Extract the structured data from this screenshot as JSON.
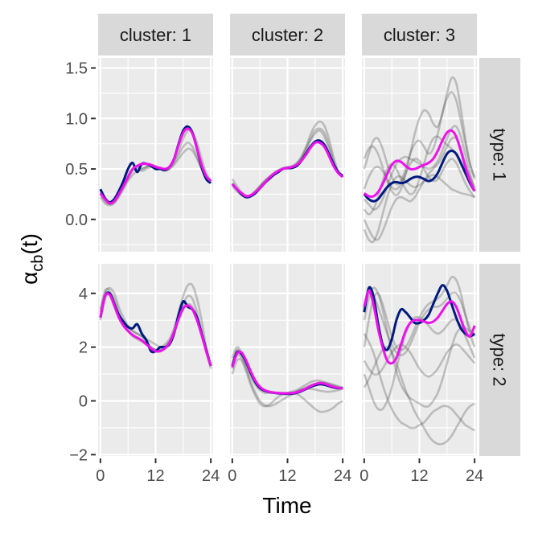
{
  "chart_data": {
    "type": "line",
    "xlabel": "Time",
    "ylabel": "α",
    "ylabel_sub": "cb",
    "ylabel_suffix": "(t)",
    "columns": [
      "cluster: 1",
      "cluster: 2",
      "cluster: 3"
    ],
    "rows": [
      "type: 1",
      "type: 2"
    ],
    "x_ticks": [
      0,
      12,
      24
    ],
    "xlim": [
      -0.5,
      24.5
    ],
    "rows_scale": [
      {
        "ylim": [
          -0.32,
          1.6
        ],
        "ticks": [
          0,
          0.5,
          1,
          1.5
        ],
        "tick_labels": [
          "0.0",
          "0.5",
          "1.0",
          "1.5"
        ]
      },
      {
        "ylim": [
          -2.05,
          5.1
        ],
        "ticks": [
          -2,
          0,
          2,
          4
        ],
        "tick_labels": [
          "−2",
          "0",
          "2",
          "4"
        ]
      }
    ],
    "colors": {
      "panel_bg": "#ebebeb",
      "strip_bg": "#d9d9d9",
      "grid": "#ffffff",
      "grey_line": "#4d4d4d",
      "navy": "#001a80",
      "magenta": "#ee10ee"
    },
    "x": [
      0,
      1,
      2,
      3,
      4,
      5,
      6,
      7,
      8,
      9,
      10,
      11,
      12,
      13,
      14,
      15,
      16,
      17,
      18,
      19,
      20,
      21,
      22,
      23,
      24
    ],
    "panels": [
      {
        "row": 0,
        "col": 0,
        "grey": [
          [
            0.27,
            0.2,
            0.17,
            0.18,
            0.24,
            0.32,
            0.4,
            0.48,
            0.5,
            0.48,
            0.5,
            0.52,
            0.52,
            0.5,
            0.49,
            0.5,
            0.54,
            0.6,
            0.66,
            0.7,
            0.68,
            0.6,
            0.5,
            0.42,
            0.38
          ],
          [
            0.25,
            0.18,
            0.15,
            0.17,
            0.24,
            0.34,
            0.44,
            0.5,
            0.52,
            0.5,
            0.52,
            0.54,
            0.52,
            0.5,
            0.5,
            0.52,
            0.58,
            0.68,
            0.8,
            0.88,
            0.86,
            0.76,
            0.6,
            0.46,
            0.38
          ],
          [
            0.22,
            0.16,
            0.14,
            0.16,
            0.22,
            0.3,
            0.38,
            0.44,
            0.48,
            0.5,
            0.52,
            0.54,
            0.53,
            0.5,
            0.48,
            0.5,
            0.56,
            0.64,
            0.72,
            0.76,
            0.72,
            0.62,
            0.5,
            0.42,
            0.36
          ]
        ],
        "navy": [
          0.3,
          0.21,
          0.17,
          0.2,
          0.28,
          0.38,
          0.5,
          0.56,
          0.47,
          0.55,
          0.55,
          0.53,
          0.5,
          0.5,
          0.49,
          0.52,
          0.6,
          0.75,
          0.88,
          0.92,
          0.86,
          0.7,
          0.52,
          0.4,
          0.36
        ],
        "magenta": [
          0.26,
          0.2,
          0.16,
          0.18,
          0.25,
          0.33,
          0.42,
          0.5,
          0.53,
          0.55,
          0.55,
          0.54,
          0.52,
          0.51,
          0.5,
          0.52,
          0.6,
          0.74,
          0.86,
          0.9,
          0.85,
          0.7,
          0.54,
          0.43,
          0.38
        ]
      },
      {
        "row": 0,
        "col": 1,
        "grey": [
          [
            0.4,
            0.33,
            0.27,
            0.24,
            0.24,
            0.28,
            0.33,
            0.38,
            0.42,
            0.46,
            0.49,
            0.51,
            0.52,
            0.53,
            0.56,
            0.62,
            0.72,
            0.84,
            0.93,
            0.97,
            0.93,
            0.8,
            0.62,
            0.48,
            0.42
          ],
          [
            0.36,
            0.3,
            0.25,
            0.23,
            0.24,
            0.28,
            0.33,
            0.38,
            0.42,
            0.45,
            0.48,
            0.5,
            0.5,
            0.51,
            0.54,
            0.6,
            0.68,
            0.78,
            0.85,
            0.88,
            0.82,
            0.7,
            0.56,
            0.46,
            0.42
          ],
          [
            0.33,
            0.28,
            0.24,
            0.22,
            0.23,
            0.26,
            0.3,
            0.35,
            0.4,
            0.44,
            0.47,
            0.5,
            0.51,
            0.52,
            0.55,
            0.61,
            0.7,
            0.8,
            0.88,
            0.9,
            0.86,
            0.74,
            0.58,
            0.47,
            0.42
          ]
        ],
        "navy": [
          0.35,
          0.3,
          0.25,
          0.22,
          0.23,
          0.26,
          0.31,
          0.36,
          0.4,
          0.44,
          0.47,
          0.5,
          0.51,
          0.51,
          0.53,
          0.58,
          0.65,
          0.72,
          0.77,
          0.78,
          0.74,
          0.65,
          0.55,
          0.47,
          0.43
        ],
        "magenta": [
          0.35,
          0.3,
          0.26,
          0.23,
          0.24,
          0.27,
          0.31,
          0.36,
          0.41,
          0.45,
          0.48,
          0.5,
          0.51,
          0.52,
          0.54,
          0.58,
          0.64,
          0.71,
          0.76,
          0.76,
          0.72,
          0.63,
          0.53,
          0.46,
          0.42
        ]
      },
      {
        "row": 0,
        "col": 2,
        "grey": [
          [
            0.3,
            0.42,
            0.5,
            0.52,
            0.48,
            0.38,
            0.28,
            0.24,
            0.3,
            0.45,
            0.65,
            0.85,
            1.0,
            1.08,
            1.05,
            0.95,
            0.92,
            1.05,
            1.25,
            1.4,
            1.35,
            1.1,
            0.8,
            0.55,
            0.4
          ],
          [
            0.5,
            0.65,
            0.78,
            0.8,
            0.7,
            0.55,
            0.42,
            0.35,
            0.38,
            0.5,
            0.65,
            0.75,
            0.78,
            0.72,
            0.65,
            0.7,
            0.85,
            1.05,
            1.2,
            1.26,
            1.18,
            0.98,
            0.75,
            0.55,
            0.42
          ],
          [
            0.1,
            0.05,
            0.1,
            0.22,
            0.38,
            0.5,
            0.55,
            0.5,
            0.4,
            0.3,
            0.25,
            0.28,
            0.4,
            0.55,
            0.7,
            0.8,
            0.82,
            0.78,
            0.74,
            0.7,
            0.64,
            0.55,
            0.45,
            0.36,
            0.28
          ],
          [
            0.0,
            -0.1,
            -0.18,
            -0.2,
            -0.12,
            0.0,
            0.12,
            0.2,
            0.22,
            0.2,
            0.18,
            0.22,
            0.3,
            0.38,
            0.45,
            0.5,
            0.55,
            0.62,
            0.72,
            0.8,
            0.8,
            0.7,
            0.55,
            0.42,
            0.32
          ],
          [
            0.6,
            0.7,
            0.72,
            0.65,
            0.52,
            0.4,
            0.32,
            0.3,
            0.35,
            0.45,
            0.55,
            0.6,
            0.58,
            0.5,
            0.42,
            0.38,
            0.4,
            0.48,
            0.56,
            0.6,
            0.56,
            0.46,
            0.36,
            0.28,
            0.22
          ],
          [
            -0.1,
            -0.2,
            -0.22,
            -0.12,
            0.05,
            0.22,
            0.35,
            0.42,
            0.42,
            0.38,
            0.34,
            0.32,
            0.34,
            0.38,
            0.42,
            0.44,
            0.42,
            0.38,
            0.34,
            0.3,
            0.28,
            0.26,
            0.25,
            0.24,
            0.22
          ],
          [
            0.2,
            0.15,
            0.1,
            0.12,
            0.2,
            0.32,
            0.45,
            0.55,
            0.6,
            0.62,
            0.6,
            0.58,
            0.55,
            0.52,
            0.5,
            0.52,
            0.58,
            0.68,
            0.8,
            0.9,
            0.92,
            0.82,
            0.64,
            0.45,
            0.3
          ]
        ],
        "navy": [
          0.25,
          0.2,
          0.18,
          0.2,
          0.26,
          0.32,
          0.36,
          0.37,
          0.36,
          0.37,
          0.4,
          0.42,
          0.42,
          0.4,
          0.38,
          0.4,
          0.46,
          0.56,
          0.65,
          0.68,
          0.65,
          0.56,
          0.46,
          0.36,
          0.28
        ],
        "magenta": [
          0.26,
          0.23,
          0.23,
          0.27,
          0.35,
          0.45,
          0.54,
          0.58,
          0.57,
          0.53,
          0.5,
          0.5,
          0.52,
          0.54,
          0.56,
          0.6,
          0.68,
          0.78,
          0.86,
          0.88,
          0.82,
          0.68,
          0.52,
          0.38,
          0.28
        ]
      },
      {
        "row": 1,
        "col": 0,
        "grey": [
          [
            3.3,
            4.0,
            4.2,
            4.0,
            3.5,
            3.1,
            2.8,
            2.6,
            2.5,
            2.4,
            2.3,
            2.2,
            2.1,
            2.0,
            2.1,
            2.3,
            2.7,
            3.3,
            3.9,
            4.3,
            4.3,
            3.8,
            3.0,
            2.0,
            1.3
          ],
          [
            3.0,
            3.8,
            4.0,
            3.8,
            3.3,
            2.9,
            2.6,
            2.4,
            2.3,
            2.2,
            2.1,
            2.0,
            1.9,
            1.9,
            2.0,
            2.2,
            2.5,
            3.0,
            3.4,
            3.6,
            3.5,
            3.1,
            2.5,
            1.8,
            1.2
          ],
          [
            3.4,
            4.1,
            4.1,
            3.7,
            3.2,
            2.9,
            2.7,
            2.6,
            2.5,
            2.4,
            2.2,
            2.0,
            1.9,
            1.9,
            2.0,
            2.2,
            2.6,
            3.1,
            3.6,
            3.9,
            3.8,
            3.3,
            2.6,
            1.9,
            1.3
          ]
        ],
        "navy": [
          3.1,
          3.9,
          4.0,
          3.6,
          3.2,
          2.95,
          2.75,
          2.7,
          2.85,
          2.5,
          2.25,
          1.85,
          1.85,
          2.0,
          2.0,
          2.1,
          2.5,
          3.2,
          3.7,
          3.5,
          3.4,
          3.1,
          2.5,
          1.9,
          1.3
        ],
        "magenta": [
          3.1,
          3.9,
          3.95,
          3.55,
          3.1,
          2.8,
          2.6,
          2.45,
          2.35,
          2.25,
          2.1,
          1.95,
          1.85,
          1.85,
          1.95,
          2.15,
          2.55,
          3.05,
          3.45,
          3.55,
          3.4,
          3.0,
          2.45,
          1.85,
          1.3
        ]
      },
      {
        "row": 1,
        "col": 1,
        "grey": [
          [
            1.4,
            1.9,
            1.7,
            1.3,
            0.9,
            0.6,
            0.4,
            0.3,
            0.3,
            0.3,
            0.3,
            0.3,
            0.3,
            0.35,
            0.4,
            0.5,
            0.6,
            0.7,
            0.75,
            0.75,
            0.7,
            0.65,
            0.6,
            0.55,
            0.5
          ],
          [
            1.2,
            1.7,
            1.6,
            1.2,
            0.7,
            0.3,
            0.0,
            -0.15,
            -0.2,
            -0.15,
            -0.05,
            0.05,
            0.15,
            0.25,
            0.35,
            0.42,
            0.45,
            0.45,
            0.42,
            0.38,
            0.35,
            0.34,
            0.36,
            0.4,
            0.45
          ],
          [
            1.0,
            1.5,
            1.5,
            1.1,
            0.6,
            0.2,
            -0.1,
            -0.2,
            -0.15,
            0.0,
            0.15,
            0.25,
            0.3,
            0.3,
            0.25,
            0.15,
            0.0,
            -0.15,
            -0.3,
            -0.4,
            -0.4,
            -0.35,
            -0.25,
            -0.1,
            0.0
          ],
          [
            1.6,
            2.0,
            1.8,
            1.4,
            1.0,
            0.7,
            0.5,
            0.4,
            0.35,
            0.32,
            0.3,
            0.28,
            0.28,
            0.3,
            0.35,
            0.42,
            0.5,
            0.58,
            0.64,
            0.68,
            0.68,
            0.64,
            0.58,
            0.52,
            0.46
          ]
        ],
        "navy": [
          1.3,
          1.8,
          1.75,
          1.45,
          1.05,
          0.7,
          0.48,
          0.38,
          0.33,
          0.3,
          0.28,
          0.27,
          0.26,
          0.27,
          0.3,
          0.36,
          0.44,
          0.52,
          0.58,
          0.62,
          0.6,
          0.55,
          0.5,
          0.47,
          0.48
        ],
        "magenta": [
          1.25,
          1.75,
          1.8,
          1.5,
          1.1,
          0.75,
          0.52,
          0.4,
          0.34,
          0.31,
          0.29,
          0.28,
          0.28,
          0.29,
          0.32,
          0.38,
          0.46,
          0.55,
          0.62,
          0.66,
          0.64,
          0.58,
          0.52,
          0.48,
          0.47
        ]
      },
      {
        "row": 1,
        "col": 2,
        "grey": [
          [
            2.0,
            3.0,
            3.8,
            4.0,
            3.6,
            3.0,
            2.4,
            2.0,
            1.9,
            2.0,
            2.3,
            2.7,
            3.1,
            3.4,
            3.6,
            3.7,
            3.8,
            4.0,
            4.3,
            4.6,
            4.5,
            4.0,
            3.2,
            2.5,
            2.0
          ],
          [
            1.0,
            0.5,
            0.0,
            -0.3,
            -0.3,
            0.0,
            0.5,
            1.2,
            1.9,
            2.5,
            2.9,
            3.1,
            3.1,
            3.0,
            2.8,
            2.6,
            2.5,
            2.6,
            2.8,
            3.0,
            3.0,
            2.8,
            2.4,
            2.0,
            1.6
          ],
          [
            3.0,
            3.8,
            4.2,
            4.0,
            3.4,
            2.6,
            1.8,
            1.1,
            0.6,
            0.3,
            0.1,
            0.0,
            -0.1,
            -0.2,
            -0.2,
            0.0,
            0.3,
            0.8,
            1.4,
            2.0,
            2.5,
            2.7,
            2.7,
            2.6,
            2.5
          ],
          [
            1.5,
            1.2,
            1.0,
            1.0,
            1.2,
            1.5,
            1.8,
            2.0,
            2.1,
            2.0,
            1.8,
            1.5,
            1.2,
            1.0,
            0.9,
            1.0,
            1.2,
            1.5,
            1.8,
            2.0,
            2.1,
            2.0,
            1.8,
            1.6,
            1.4
          ],
          [
            2.5,
            2.2,
            1.8,
            1.2,
            0.6,
            0.1,
            -0.3,
            -0.6,
            -0.8,
            -0.9,
            -1.0,
            -1.0,
            -0.9,
            -0.8,
            -0.6,
            -0.4,
            -0.3,
            -0.2,
            -0.2,
            -0.3,
            -0.5,
            -0.7,
            -0.9,
            -1.0,
            -1.1
          ],
          [
            3.5,
            4.0,
            3.9,
            3.5,
            3.0,
            2.5,
            2.1,
            1.8,
            1.7,
            1.8,
            2.1,
            2.5,
            2.9,
            3.2,
            3.4,
            3.5,
            3.5,
            3.6,
            3.8,
            4.0,
            4.0,
            3.7,
            3.2,
            2.7,
            2.4
          ],
          [
            0.5,
            0.8,
            1.2,
            1.6,
            1.9,
            2.0,
            1.8,
            1.4,
            0.9,
            0.4,
            0.0,
            -0.4,
            -0.7,
            -1.0,
            -1.3,
            -1.5,
            -1.6,
            -1.6,
            -1.5,
            -1.3,
            -1.0,
            -0.7,
            -0.4,
            -0.2,
            -0.1
          ]
        ],
        "navy": [
          3.3,
          4.2,
          3.9,
          2.9,
          2.1,
          1.9,
          2.3,
          3.0,
          3.4,
          3.3,
          3.1,
          2.9,
          2.9,
          3.0,
          3.2,
          3.6,
          4.0,
          4.3,
          4.1,
          3.6,
          3.1,
          2.7,
          2.5,
          2.4,
          2.5
        ],
        "magenta": [
          3.5,
          4.1,
          3.6,
          2.7,
          2.0,
          1.5,
          1.4,
          1.6,
          2.1,
          2.6,
          2.9,
          3.0,
          3.0,
          2.95,
          2.9,
          2.95,
          3.1,
          3.35,
          3.6,
          3.7,
          3.5,
          3.05,
          2.6,
          2.4,
          2.8
        ]
      }
    ]
  }
}
